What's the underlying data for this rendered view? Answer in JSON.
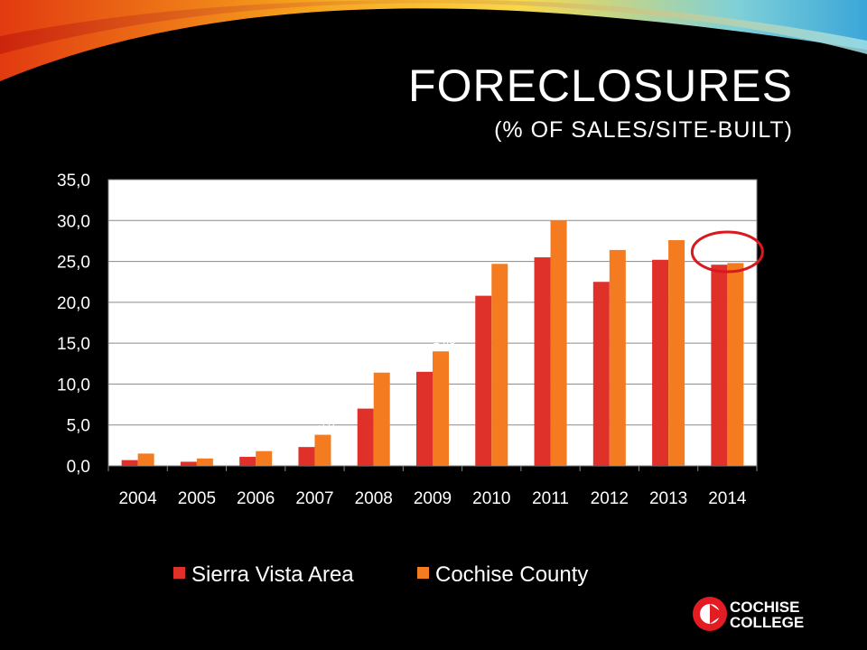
{
  "slide": {
    "title": "FORECLOSURES",
    "subtitle": "(% OF SALES/SITE-BUILT)",
    "logo": {
      "line1": "COCHISE",
      "line2": "COLLEGE"
    }
  },
  "colors": {
    "background": "#000000",
    "sierra": "#E0302A",
    "cochise": "#F47B20",
    "highlight": "#D9181F",
    "text": "#FFFFFF"
  },
  "chart_data": {
    "type": "bar",
    "categories": [
      "2004",
      "2005",
      "2006",
      "2007",
      "2008",
      "2009",
      "2010",
      "2011",
      "2012",
      "2013",
      "2014"
    ],
    "series": [
      {
        "name": "Sierra Vista Area",
        "color": "#E0302A",
        "values": [
          0.7,
          0.5,
          1.1,
          2.3,
          7.0,
          11.5,
          20.8,
          25.5,
          22.5,
          25.2,
          24.6
        ],
        "labels": [
          "0,7",
          "0,5",
          "1,1",
          "2,3",
          "7,0",
          "11,5",
          "20,8",
          "25,5",
          "22,5",
          "25,2",
          "24,6"
        ]
      },
      {
        "name": "Cochise County",
        "color": "#F47B20",
        "values": [
          1.5,
          0.9,
          1.8,
          3.8,
          11.4,
          14.0,
          24.7,
          30.0,
          26.4,
          27.6,
          24.8
        ],
        "labels": [
          "1,5",
          "0,9",
          "1,8",
          "3,8",
          "11,4",
          "14,0",
          "24,7",
          "30,0",
          "26,4",
          "27,6",
          "24,8"
        ]
      }
    ],
    "ylim": [
      0,
      35
    ],
    "yticks": [
      "0,0",
      "5,0",
      "10,0",
      "15,0",
      "20,0",
      "25,0",
      "30,0",
      "35,0"
    ],
    "grid": true,
    "legend": "bottom",
    "highlight": "2014"
  }
}
